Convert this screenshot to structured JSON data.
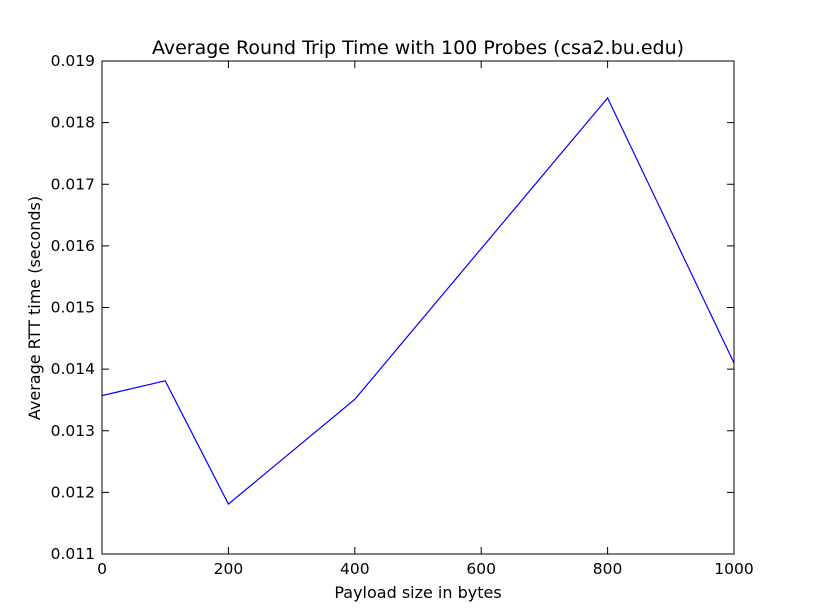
{
  "chart_data": {
    "type": "line",
    "title": "Average Round Trip Time with 100 Probes (csa2.bu.edu)",
    "xlabel": "Payload size in bytes",
    "ylabel": "Average RTT time (seconds)",
    "xlim": [
      0,
      1000
    ],
    "ylim": [
      0.011,
      0.019
    ],
    "xticks": [
      0,
      200,
      400,
      600,
      800,
      1000
    ],
    "xtick_labels": [
      "0",
      "200",
      "400",
      "600",
      "800",
      "1000"
    ],
    "yticks": [
      0.011,
      0.012,
      0.013,
      0.014,
      0.015,
      0.016,
      0.017,
      0.018,
      0.019
    ],
    "ytick_labels": [
      "0.011",
      "0.012",
      "0.013",
      "0.014",
      "0.015",
      "0.016",
      "0.017",
      "0.018",
      "0.019"
    ],
    "grid": false,
    "series": [
      {
        "x": [
          0,
          100,
          200,
          400,
          800,
          1000
        ],
        "y": [
          0.01357,
          0.01381,
          0.01181,
          0.01351,
          0.0184,
          0.0141
        ],
        "color": "#0000ff"
      }
    ]
  }
}
